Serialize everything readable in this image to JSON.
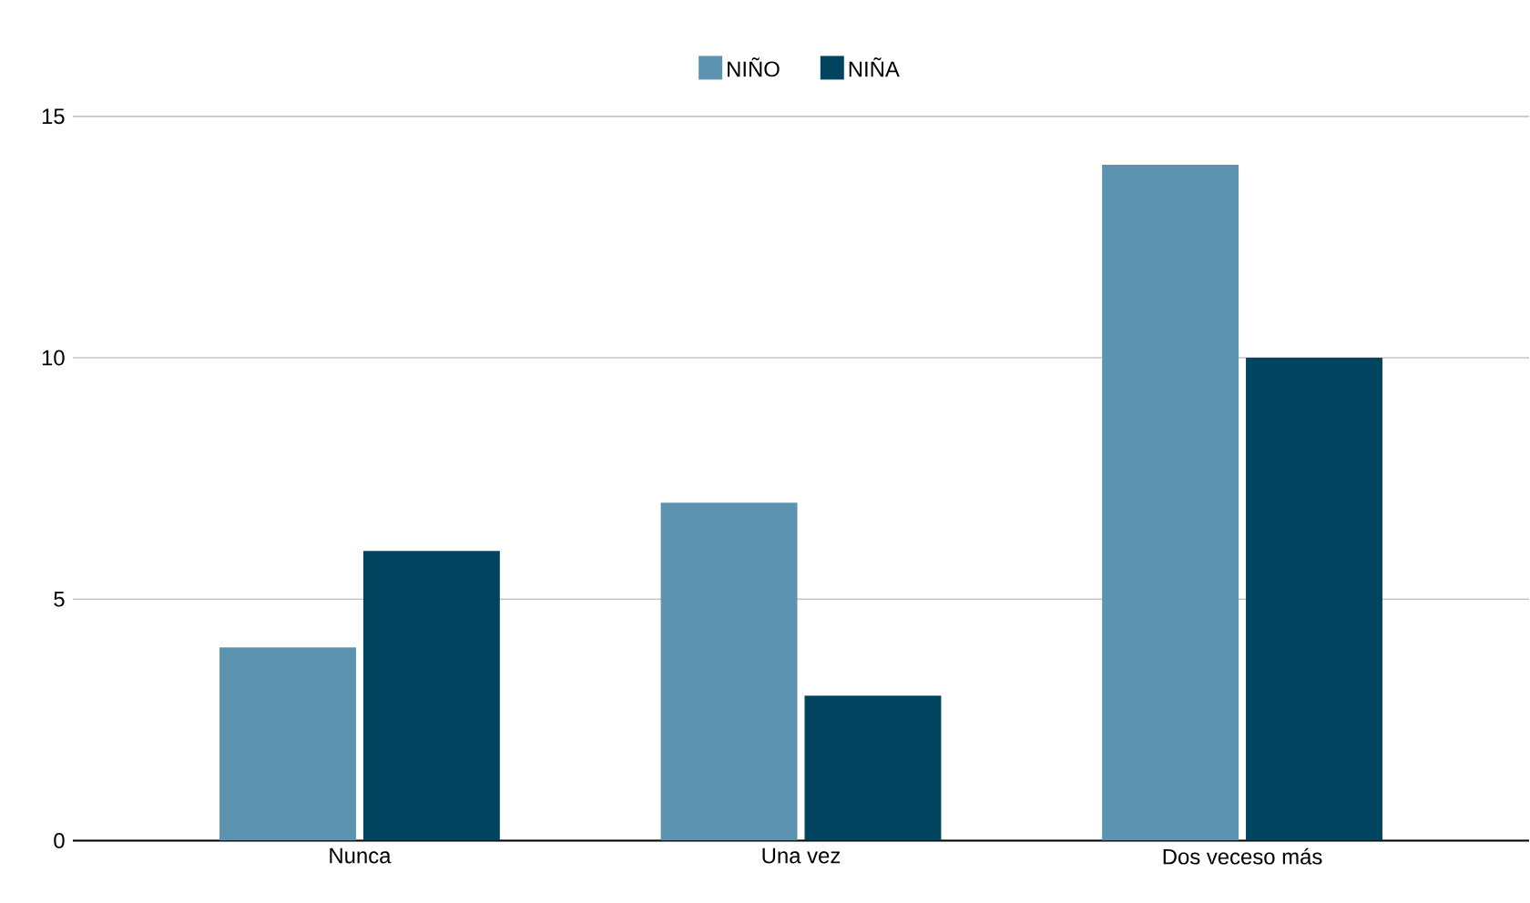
{
  "chart_data": {
    "type": "bar",
    "categories": [
      "Nunca",
      "Una vez",
      "Dos veceso más"
    ],
    "series": [
      {
        "name": "NIÑO",
        "color": "#5b93b1",
        "values": [
          4,
          7,
          14
        ]
      },
      {
        "name": "NIÑA",
        "color": "#00445f",
        "values": [
          6,
          3,
          10
        ]
      }
    ],
    "ylim": [
      0,
      15
    ],
    "yticks": [
      0,
      5,
      10,
      15
    ],
    "grid": "y",
    "legend": "top"
  }
}
